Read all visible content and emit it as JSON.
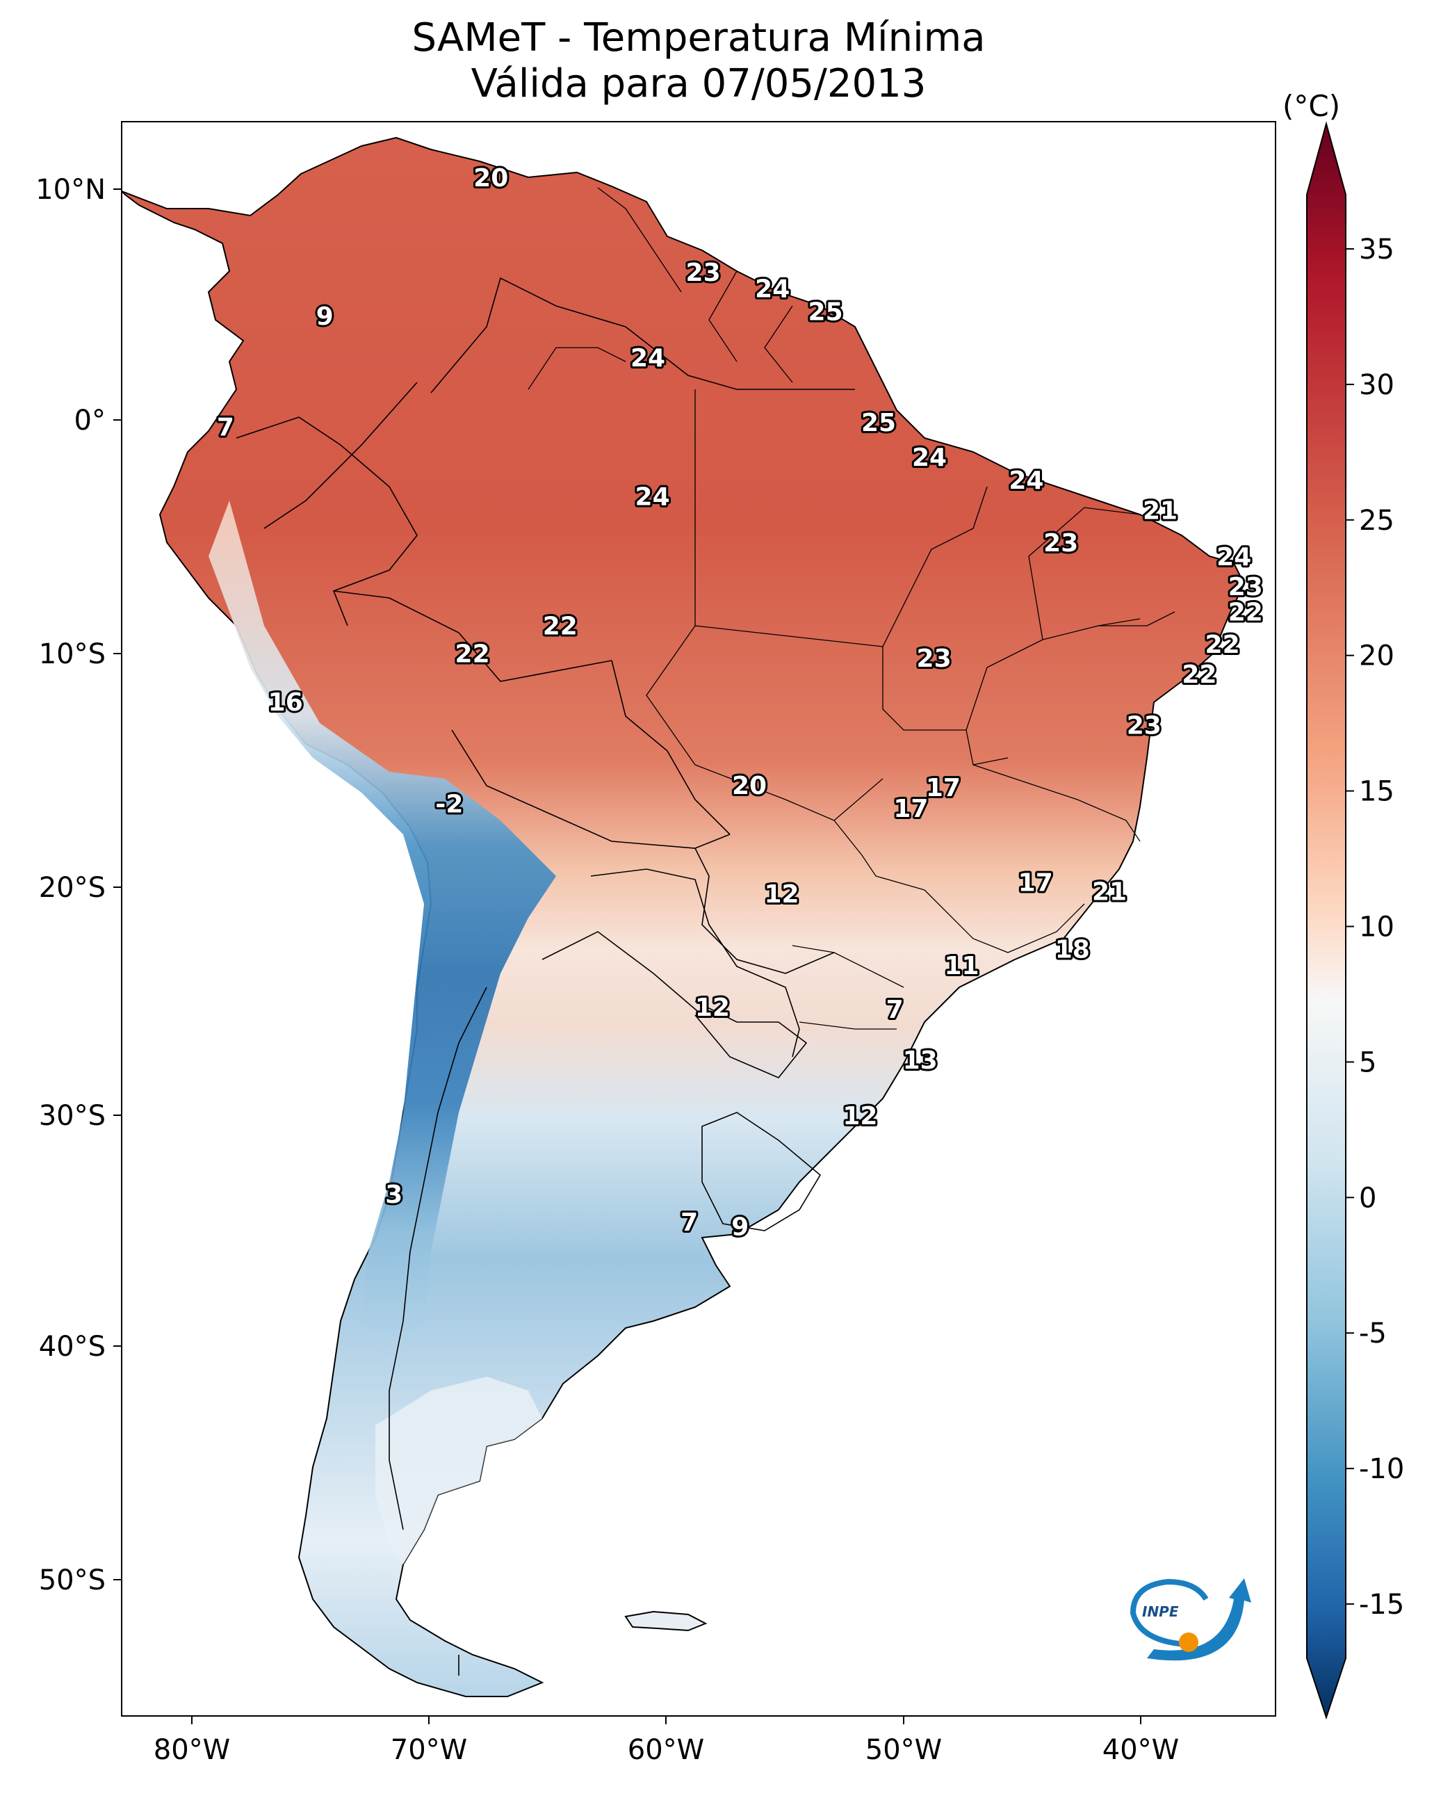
{
  "title": {
    "line1": "SAMeT - Temperatura Mínima",
    "line2": "Válida para 07/05/2013"
  },
  "map": {
    "lon_ticks": [
      "80°W",
      "70°W",
      "60°W",
      "50°W",
      "40°W"
    ],
    "lat_ticks": [
      "10°N",
      "0°",
      "10°S",
      "20°S",
      "30°S",
      "40°S",
      "50°S"
    ],
    "extent": {
      "lon": [
        -83,
        -33
      ],
      "lat": [
        -56,
        13
      ]
    },
    "station_values": [
      {
        "label": "20",
        "lon": -67.0,
        "lat": 10.6
      },
      {
        "label": "9",
        "lon": -74.2,
        "lat": 4.6
      },
      {
        "label": "23",
        "lon": -57.8,
        "lat": 6.5
      },
      {
        "label": "24",
        "lon": -54.8,
        "lat": 5.8
      },
      {
        "label": "25",
        "lon": -52.5,
        "lat": 4.8
      },
      {
        "label": "24",
        "lon": -60.2,
        "lat": 2.8
      },
      {
        "label": "7",
        "lon": -78.5,
        "lat": -0.2
      },
      {
        "label": "25",
        "lon": -50.2,
        "lat": 0.0
      },
      {
        "label": "24",
        "lon": -48.0,
        "lat": -1.5
      },
      {
        "label": "24",
        "lon": -60.0,
        "lat": -3.2
      },
      {
        "label": "24",
        "lon": -43.8,
        "lat": -2.5
      },
      {
        "label": "21",
        "lon": -38.0,
        "lat": -3.8
      },
      {
        "label": "23",
        "lon": -42.3,
        "lat": -5.2
      },
      {
        "label": "24",
        "lon": -34.8,
        "lat": -5.8
      },
      {
        "label": "23",
        "lon": -34.3,
        "lat": -7.1
      },
      {
        "label": "22",
        "lon": -34.3,
        "lat": -8.2
      },
      {
        "label": "22",
        "lon": -64.0,
        "lat": -8.8
      },
      {
        "label": "22",
        "lon": -67.8,
        "lat": -10.0
      },
      {
        "label": "23",
        "lon": -47.8,
        "lat": -10.2
      },
      {
        "label": "22",
        "lon": -35.3,
        "lat": -9.6
      },
      {
        "label": "22",
        "lon": -36.3,
        "lat": -10.9
      },
      {
        "label": "16",
        "lon": -75.9,
        "lat": -12.1
      },
      {
        "label": "23",
        "lon": -38.7,
        "lat": -13.1
      },
      {
        "label": "20",
        "lon": -55.8,
        "lat": -15.7
      },
      {
        "label": "17",
        "lon": -47.4,
        "lat": -15.8
      },
      {
        "label": "17",
        "lon": -48.8,
        "lat": -16.7
      },
      {
        "label": "-2",
        "lon": -68.8,
        "lat": -16.5
      },
      {
        "label": "12",
        "lon": -54.4,
        "lat": -20.4
      },
      {
        "label": "17",
        "lon": -43.4,
        "lat": -19.9
      },
      {
        "label": "21",
        "lon": -40.2,
        "lat": -20.3
      },
      {
        "label": "18",
        "lon": -41.8,
        "lat": -22.8
      },
      {
        "label": "11",
        "lon": -46.6,
        "lat": -23.5
      },
      {
        "label": "12",
        "lon": -57.4,
        "lat": -25.3
      },
      {
        "label": "7",
        "lon": -49.5,
        "lat": -25.4
      },
      {
        "label": "13",
        "lon": -48.4,
        "lat": -27.6
      },
      {
        "label": "12",
        "lon": -51.0,
        "lat": -30.0
      },
      {
        "label": "3",
        "lon": -71.2,
        "lat": -33.4
      },
      {
        "label": "7",
        "lon": -58.4,
        "lat": -34.6
      },
      {
        "label": "9",
        "lon": -56.2,
        "lat": -34.8
      }
    ]
  },
  "colorbar": {
    "unit": "(°C)",
    "ticks": [
      "35",
      "30",
      "25",
      "20",
      "15",
      "10",
      "5",
      "0",
      "-5",
      "-10",
      "-15"
    ],
    "range": [
      -17,
      37
    ],
    "cmap": "RdBu_r"
  },
  "logo": {
    "text": "INPE"
  }
}
